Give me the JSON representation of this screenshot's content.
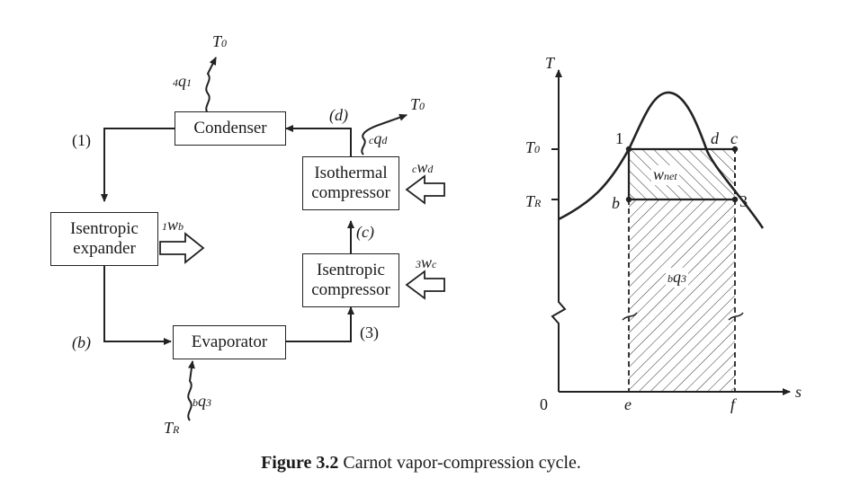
{
  "caption": {
    "figure_number": "Figure 3.2",
    "title": "Carnot vapor-compression cycle."
  },
  "flow_diagram": {
    "components": {
      "condenser": "Condenser",
      "isothermal_compressor": [
        "Isothermal",
        "compressor"
      ],
      "isentropic_expander": [
        "Isentropic",
        "expander"
      ],
      "isentropic_compressor": [
        "Isentropic",
        "compressor"
      ],
      "evaporator": "Evaporator"
    },
    "state_labels": [
      "(1)",
      "(d)",
      "(c)",
      "(b)",
      "(3)"
    ],
    "heat_work": {
      "condenser_heat": {
        "pre": "4",
        "sym": "q",
        "sub": "1"
      },
      "condenser_sink": {
        "sym": "T",
        "sub": "0"
      },
      "iso_comp_heat": {
        "pre": "c",
        "sym": "q",
        "sub": "d"
      },
      "iso_comp_sink": {
        "sym": "T",
        "sub": "0"
      },
      "iso_comp_work": {
        "pre": "c",
        "sym": "w",
        "sub": "d"
      },
      "expander_work": {
        "pre": "1",
        "sym": "w",
        "sub": "b"
      },
      "isen_comp_work": {
        "pre": "3",
        "sym": "w",
        "sub": "c"
      },
      "evaporator_heat": {
        "pre": "b",
        "sym": "q",
        "sub": "3"
      },
      "evaporator_source": {
        "sym": "T",
        "sub": "R"
      }
    }
  },
  "ts_diagram": {
    "y_axis": {
      "sym": "T"
    },
    "x_axis": {
      "sym": "s"
    },
    "origin": "0",
    "T0_tick": {
      "sym": "T",
      "sub": "0"
    },
    "TR_tick": {
      "sym": "T",
      "sub": "R"
    },
    "points": [
      "1",
      "d",
      "c",
      "b",
      "3",
      "e",
      "f"
    ],
    "w_net": {
      "sym": "w",
      "sub": "net"
    },
    "area_label": {
      "pre": "b",
      "sym": "q",
      "sub": "3"
    }
  }
}
